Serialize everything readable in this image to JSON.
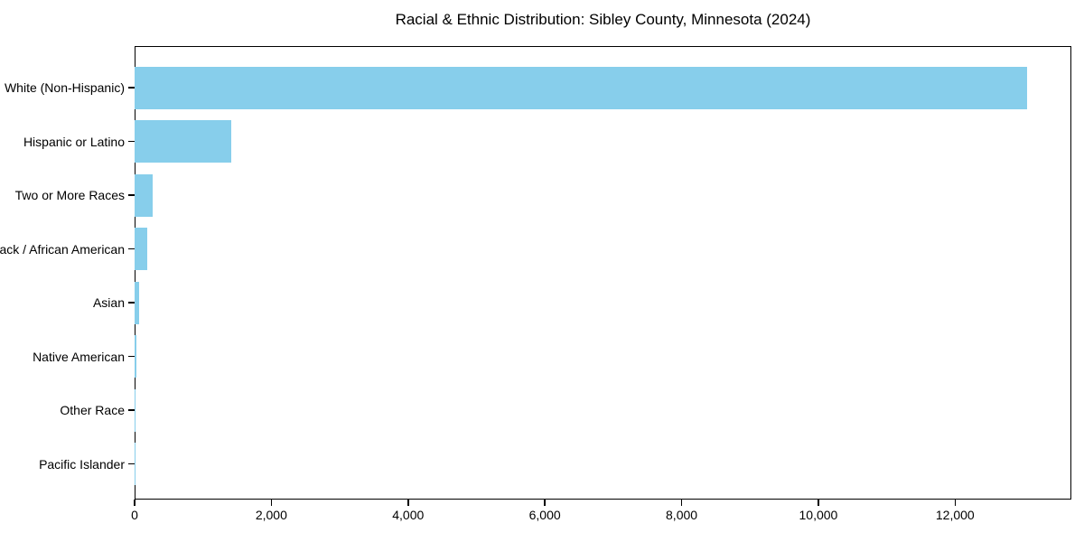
{
  "page": {
    "background_color": "#ffffff"
  },
  "chart_data": {
    "type": "bar",
    "orientation": "horizontal",
    "title": "Racial & Ethnic Distribution: Sibley County, Minnesota (2024)",
    "categories": [
      "White (Non-Hispanic)",
      "Hispanic or Latino",
      "Two or More Races",
      "Black / African American",
      "Asian",
      "Native American",
      "Other Race",
      "Pacific Islander"
    ],
    "values": [
      13050,
      1410,
      265,
      180,
      60,
      30,
      15,
      4
    ],
    "xlabel": "",
    "ylabel": "",
    "xlim": [
      0,
      13700
    ],
    "x_ticks": [
      0,
      2000,
      4000,
      6000,
      8000,
      10000,
      12000
    ],
    "x_tick_labels": [
      "0",
      "2,000",
      "4,000",
      "6,000",
      "8,000",
      "10,000",
      "12,000"
    ],
    "grid": false,
    "legend": "none",
    "bar_color": "#87CEEB",
    "axis_color": "#000000",
    "text_color": "#000000"
  }
}
